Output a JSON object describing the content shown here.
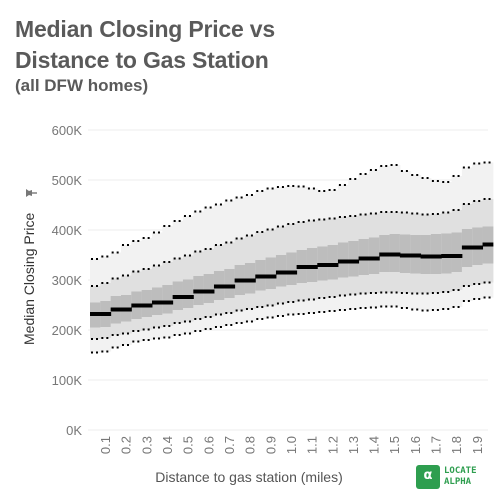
{
  "title_line1": "Median Closing Price vs",
  "title_line2": "Distance to Gas Station",
  "subtitle": "(all DFW homes)",
  "logo": {
    "mark": "α",
    "line1": "LOCATE",
    "line2": "ALPHA"
  },
  "colors": {
    "median": "#000000",
    "band_outer": "#f2f2f2",
    "band_mid": "#e0e0e0",
    "band_inner": "#bdbdbd",
    "whisker": "#000000",
    "axis_text": "#777777",
    "grid": "#eeeeee",
    "brand": "#2e9e4f"
  },
  "chart_data": {
    "type": "boxplot",
    "title": "Median Closing Price vs Distance to Gas Station",
    "subtitle": "(all DFW homes)",
    "xlabel": "Distance to gas station (miles)",
    "ylabel": "Median Closing Price",
    "ylabel_icon": "pin-icon",
    "y_ticks": [
      "0K",
      "100K",
      "200K",
      "300K",
      "400K",
      "500K",
      "600K"
    ],
    "ylim": [
      0,
      600000
    ],
    "x_tick_labels": [
      "0.1",
      "0.2",
      "0.3",
      "0.4",
      "0.5",
      "0.6",
      "0.7",
      "0.8",
      "0.9",
      "1.0",
      "1.1",
      "1.2",
      "1.3",
      "1.4",
      "1.5",
      "1.6",
      "1.7",
      "1.8",
      "1.9"
    ],
    "x": [
      0.05,
      0.1,
      0.15,
      0.2,
      0.25,
      0.3,
      0.35,
      0.4,
      0.45,
      0.5,
      0.55,
      0.6,
      0.65,
      0.7,
      0.75,
      0.8,
      0.85,
      0.9,
      0.95,
      1.0,
      1.05,
      1.1,
      1.15,
      1.2,
      1.25,
      1.3,
      1.35,
      1.4,
      1.45,
      1.5,
      1.55,
      1.6,
      1.65,
      1.7,
      1.75,
      1.8,
      1.85,
      1.9,
      1.95
    ],
    "median": [
      232000,
      232000,
      241000,
      241000,
      249000,
      249000,
      255000,
      255000,
      266000,
      266000,
      277000,
      277000,
      287000,
      287000,
      299000,
      299000,
      307000,
      307000,
      315000,
      315000,
      326000,
      326000,
      330000,
      330000,
      337000,
      337000,
      343000,
      343000,
      351000,
      351000,
      349000,
      349000,
      347000,
      347000,
      348000,
      348000,
      365000,
      365000,
      371000
    ],
    "p25": [
      205000,
      206000,
      213000,
      217000,
      222000,
      226000,
      230000,
      233000,
      240000,
      244000,
      250000,
      254000,
      260000,
      264000,
      270000,
      273000,
      279000,
      282000,
      287000,
      290000,
      294000,
      296000,
      299000,
      301000,
      305000,
      307000,
      310000,
      312000,
      316000,
      316000,
      314000,
      313000,
      312000,
      312000,
      313000,
      316000,
      326000,
      330000,
      333000
    ],
    "p75": [
      255000,
      258000,
      268000,
      270000,
      277000,
      280000,
      285000,
      290000,
      297000,
      301000,
      308000,
      312000,
      318000,
      322000,
      330000,
      334000,
      340000,
      345000,
      350000,
      355000,
      360000,
      364000,
      367000,
      370000,
      375000,
      378000,
      382000,
      385000,
      390000,
      392000,
      391000,
      390000,
      390000,
      392000,
      393000,
      395000,
      402000,
      405000,
      407000
    ],
    "p10": [
      182000,
      184000,
      190000,
      193000,
      198000,
      201000,
      205000,
      208000,
      214000,
      217000,
      222000,
      226000,
      231000,
      234000,
      239000,
      242000,
      246000,
      249000,
      253000,
      256000,
      259000,
      261000,
      264000,
      266000,
      269000,
      271000,
      273000,
      274000,
      275000,
      275000,
      274000,
      273000,
      273000,
      274000,
      276000,
      280000,
      288000,
      292000,
      295000
    ],
    "p90": [
      288000,
      294000,
      303000,
      309000,
      317000,
      322000,
      329000,
      336000,
      343000,
      349000,
      357000,
      362000,
      370000,
      375000,
      383000,
      389000,
      396000,
      401000,
      407000,
      412000,
      416000,
      419000,
      421000,
      423000,
      426000,
      428000,
      431000,
      433000,
      436000,
      436000,
      435000,
      433000,
      431000,
      432000,
      435000,
      440000,
      452000,
      458000,
      462000
    ],
    "p02": [
      155000,
      157000,
      165000,
      170000,
      177000,
      180000,
      183000,
      185000,
      190000,
      193000,
      198000,
      202000,
      206000,
      210000,
      214000,
      217000,
      222000,
      225000,
      228000,
      231000,
      232000,
      234000,
      236000,
      238000,
      240000,
      242000,
      244000,
      245000,
      247000,
      247000,
      244000,
      241000,
      239000,
      240000,
      242000,
      246000,
      258000,
      262000,
      265000
    ],
    "p98": [
      342000,
      347000,
      355000,
      370000,
      378000,
      384000,
      395000,
      408000,
      418000,
      428000,
      437000,
      445000,
      451000,
      459000,
      465000,
      470000,
      478000,
      483000,
      486000,
      488000,
      487000,
      483000,
      478000,
      480000,
      490000,
      502000,
      512000,
      520000,
      528000,
      530000,
      518000,
      510000,
      504000,
      498000,
      496000,
      508000,
      525000,
      533000,
      535000
    ]
  }
}
